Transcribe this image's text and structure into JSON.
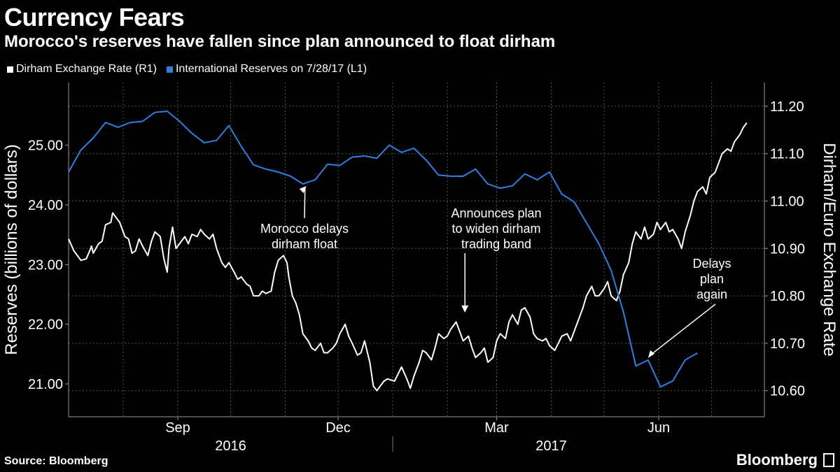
{
  "header": {
    "title": "Currency Fears",
    "subtitle": "Morocco's reserves have fallen since plan announced to float dirham"
  },
  "footer": {
    "source": "Source: Bloomberg",
    "brand": "Bloomberg"
  },
  "colors": {
    "background": "#000000",
    "reserves": "#2e7fe0",
    "exchange": "#ffffff",
    "grid": "#555555"
  },
  "chart_data": {
    "type": "line",
    "title": "Currency Fears",
    "subtitle": "Morocco's reserves have fallen since plan announced to float dirham",
    "grid": true,
    "legend_position": "top-left",
    "x_axis": {
      "range": [
        "2016-07-01",
        "2017-07-31"
      ],
      "tick_labels": [
        {
          "label": "Sep",
          "date": "2016-09-01"
        },
        {
          "label": "Dec",
          "date": "2016-12-01"
        },
        {
          "label": "Mar",
          "date": "2017-03-01"
        },
        {
          "label": "Jun",
          "date": "2017-06-01"
        }
      ],
      "year_labels": [
        {
          "label": "2016",
          "date": "2016-10-01"
        },
        {
          "label": "2017",
          "date": "2017-04-01"
        }
      ],
      "gridline_dates": [
        "2016-08-01",
        "2016-10-01",
        "2016-11-01",
        "2017-01-01",
        "2017-02-01",
        "2017-04-01",
        "2017-05-01",
        "2017-07-01"
      ]
    },
    "y_left": {
      "label": "Reserves (billions of dollars)",
      "ticks": [
        "21.00",
        "22.00",
        "23.00",
        "24.00",
        "25.00"
      ],
      "range": [
        20.45,
        26.05
      ]
    },
    "y_right": {
      "label": "Dirham/Euro Exchange Rate",
      "ticks": [
        "10.60",
        "10.70",
        "10.80",
        "10.90",
        "11.00",
        "11.10",
        "11.20"
      ],
      "range": [
        10.545,
        11.25
      ]
    },
    "series": [
      {
        "name": "Dirham Exchange Rate (R1)",
        "axis": "right",
        "values": [
          [
            "2016-07-01",
            10.92
          ],
          [
            "2016-07-04",
            10.895
          ],
          [
            "2016-07-06",
            10.885
          ],
          [
            "2016-07-08",
            10.875
          ],
          [
            "2016-07-11",
            10.878
          ],
          [
            "2016-07-13",
            10.895
          ],
          [
            "2016-07-14",
            10.905
          ],
          [
            "2016-07-15",
            10.89
          ],
          [
            "2016-07-18",
            10.91
          ],
          [
            "2016-07-20",
            10.915
          ],
          [
            "2016-07-22",
            10.95
          ],
          [
            "2016-07-25",
            10.955
          ],
          [
            "2016-07-26",
            10.975
          ],
          [
            "2016-07-28",
            10.965
          ],
          [
            "2016-07-30",
            10.955
          ],
          [
            "2016-08-02",
            10.925
          ],
          [
            "2016-08-04",
            10.92
          ],
          [
            "2016-08-06",
            10.89
          ],
          [
            "2016-08-08",
            10.895
          ],
          [
            "2016-08-10",
            10.92
          ],
          [
            "2016-08-12",
            10.905
          ],
          [
            "2016-08-15",
            10.885
          ],
          [
            "2016-08-17",
            10.915
          ],
          [
            "2016-08-19",
            10.935
          ],
          [
            "2016-08-22",
            10.925
          ],
          [
            "2016-08-24",
            10.88
          ],
          [
            "2016-08-26",
            10.85
          ],
          [
            "2016-08-27",
            10.9
          ],
          [
            "2016-08-29",
            10.945
          ],
          [
            "2016-08-31",
            10.9
          ],
          [
            "2016-09-02",
            10.91
          ],
          [
            "2016-09-05",
            10.925
          ],
          [
            "2016-09-07",
            10.91
          ],
          [
            "2016-09-09",
            10.93
          ],
          [
            "2016-09-12",
            10.925
          ],
          [
            "2016-09-14",
            10.94
          ],
          [
            "2016-09-16",
            10.93
          ],
          [
            "2016-09-19",
            10.92
          ],
          [
            "2016-09-21",
            10.93
          ],
          [
            "2016-09-23",
            10.9
          ],
          [
            "2016-09-26",
            10.87
          ],
          [
            "2016-09-28",
            10.86
          ],
          [
            "2016-09-30",
            10.87
          ],
          [
            "2016-10-03",
            10.85
          ],
          [
            "2016-10-05",
            10.835
          ],
          [
            "2016-10-07",
            10.84
          ],
          [
            "2016-10-10",
            10.825
          ],
          [
            "2016-10-12",
            10.82
          ],
          [
            "2016-10-14",
            10.8
          ],
          [
            "2016-10-17",
            10.8
          ],
          [
            "2016-10-19",
            10.81
          ],
          [
            "2016-10-21",
            10.805
          ],
          [
            "2016-10-24",
            10.81
          ],
          [
            "2016-10-26",
            10.85
          ],
          [
            "2016-10-28",
            10.875
          ],
          [
            "2016-10-31",
            10.885
          ],
          [
            "2016-11-02",
            10.87
          ],
          [
            "2016-11-03",
            10.84
          ],
          [
            "2016-11-05",
            10.8
          ],
          [
            "2016-11-07",
            10.785
          ],
          [
            "2016-11-09",
            10.76
          ],
          [
            "2016-11-11",
            10.72
          ],
          [
            "2016-11-14",
            10.705
          ],
          [
            "2016-11-16",
            10.69
          ],
          [
            "2016-11-18",
            10.685
          ],
          [
            "2016-11-21",
            10.7
          ],
          [
            "2016-11-23",
            10.68
          ],
          [
            "2016-11-25",
            10.68
          ],
          [
            "2016-11-28",
            10.69
          ],
          [
            "2016-11-30",
            10.7
          ],
          [
            "2016-12-02",
            10.72
          ],
          [
            "2016-12-05",
            10.74
          ],
          [
            "2016-12-07",
            10.715
          ],
          [
            "2016-12-09",
            10.7
          ],
          [
            "2016-12-12",
            10.675
          ],
          [
            "2016-12-14",
            10.68
          ],
          [
            "2016-12-16",
            10.705
          ],
          [
            "2016-12-19",
            10.66
          ],
          [
            "2016-12-21",
            10.61
          ],
          [
            "2016-12-23",
            10.6
          ],
          [
            "2016-12-27",
            10.62
          ],
          [
            "2016-12-29",
            10.625
          ],
          [
            "2017-01-02",
            10.62
          ],
          [
            "2017-01-04",
            10.635
          ],
          [
            "2017-01-06",
            10.65
          ],
          [
            "2017-01-09",
            10.625
          ],
          [
            "2017-01-11",
            10.605
          ],
          [
            "2017-01-13",
            10.63
          ],
          [
            "2017-01-16",
            10.66
          ],
          [
            "2017-01-18",
            10.685
          ],
          [
            "2017-01-20",
            10.68
          ],
          [
            "2017-01-23",
            10.665
          ],
          [
            "2017-01-25",
            10.69
          ],
          [
            "2017-01-27",
            10.72
          ],
          [
            "2017-01-30",
            10.71
          ],
          [
            "2017-02-01",
            10.715
          ],
          [
            "2017-02-03",
            10.73
          ],
          [
            "2017-02-06",
            10.745
          ],
          [
            "2017-02-08",
            10.725
          ],
          [
            "2017-02-10",
            10.705
          ],
          [
            "2017-02-13",
            10.715
          ],
          [
            "2017-02-15",
            10.69
          ],
          [
            "2017-02-17",
            10.67
          ],
          [
            "2017-02-20",
            10.68
          ],
          [
            "2017-02-22",
            10.69
          ],
          [
            "2017-02-24",
            10.66
          ],
          [
            "2017-02-27",
            10.67
          ],
          [
            "2017-03-01",
            10.705
          ],
          [
            "2017-03-03",
            10.72
          ],
          [
            "2017-03-06",
            10.71
          ],
          [
            "2017-03-08",
            10.745
          ],
          [
            "2017-03-10",
            10.76
          ],
          [
            "2017-03-13",
            10.74
          ],
          [
            "2017-03-15",
            10.77
          ],
          [
            "2017-03-17",
            10.775
          ],
          [
            "2017-03-20",
            10.755
          ],
          [
            "2017-03-22",
            10.72
          ],
          [
            "2017-03-24",
            10.71
          ],
          [
            "2017-03-27",
            10.705
          ],
          [
            "2017-03-29",
            10.71
          ],
          [
            "2017-03-31",
            10.695
          ],
          [
            "2017-04-03",
            10.685
          ],
          [
            "2017-04-05",
            10.7
          ],
          [
            "2017-04-07",
            10.715
          ],
          [
            "2017-04-10",
            10.72
          ],
          [
            "2017-04-12",
            10.705
          ],
          [
            "2017-04-14",
            10.725
          ],
          [
            "2017-04-17",
            10.755
          ],
          [
            "2017-04-19",
            10.775
          ],
          [
            "2017-04-21",
            10.8
          ],
          [
            "2017-04-24",
            10.82
          ],
          [
            "2017-04-26",
            10.8
          ],
          [
            "2017-04-28",
            10.8
          ],
          [
            "2017-05-01",
            10.815
          ],
          [
            "2017-05-03",
            10.83
          ],
          [
            "2017-05-05",
            10.8
          ],
          [
            "2017-05-08",
            10.79
          ],
          [
            "2017-05-10",
            10.81
          ],
          [
            "2017-05-12",
            10.845
          ],
          [
            "2017-05-15",
            10.87
          ],
          [
            "2017-05-17",
            10.91
          ],
          [
            "2017-05-19",
            10.935
          ],
          [
            "2017-05-22",
            10.92
          ],
          [
            "2017-05-24",
            10.945
          ],
          [
            "2017-05-26",
            10.92
          ],
          [
            "2017-05-29",
            10.93
          ],
          [
            "2017-05-31",
            10.955
          ],
          [
            "2017-06-02",
            10.94
          ],
          [
            "2017-06-05",
            10.955
          ],
          [
            "2017-06-07",
            10.935
          ],
          [
            "2017-06-09",
            10.94
          ],
          [
            "2017-06-12",
            10.92
          ],
          [
            "2017-06-14",
            10.9
          ],
          [
            "2017-06-16",
            10.935
          ],
          [
            "2017-06-19",
            10.97
          ],
          [
            "2017-06-21",
            11.0
          ],
          [
            "2017-06-23",
            11.02
          ],
          [
            "2017-06-26",
            11.03
          ],
          [
            "2017-06-28",
            11.015
          ],
          [
            "2017-06-30",
            11.05
          ],
          [
            "2017-07-03",
            11.06
          ],
          [
            "2017-07-05",
            11.08
          ],
          [
            "2017-07-07",
            11.1
          ],
          [
            "2017-07-10",
            11.11
          ],
          [
            "2017-07-12",
            11.105
          ],
          [
            "2017-07-14",
            11.125
          ],
          [
            "2017-07-17",
            11.14
          ],
          [
            "2017-07-19",
            11.155
          ],
          [
            "2017-07-21",
            11.165
          ]
        ]
      },
      {
        "name": "International Reserves on 7/28/17 (L1)",
        "axis": "left",
        "values": [
          [
            "2016-07-01",
            24.55
          ],
          [
            "2016-07-08",
            24.92
          ],
          [
            "2016-07-15",
            25.12
          ],
          [
            "2016-07-22",
            25.38
          ],
          [
            "2016-07-29",
            25.3
          ],
          [
            "2016-08-05",
            25.38
          ],
          [
            "2016-08-12",
            25.4
          ],
          [
            "2016-08-19",
            25.55
          ],
          [
            "2016-08-26",
            25.57
          ],
          [
            "2016-09-02",
            25.4
          ],
          [
            "2016-09-09",
            25.2
          ],
          [
            "2016-09-16",
            25.04
          ],
          [
            "2016-09-23",
            25.08
          ],
          [
            "2016-09-30",
            25.33
          ],
          [
            "2016-10-07",
            24.98
          ],
          [
            "2016-10-14",
            24.67
          ],
          [
            "2016-10-21",
            24.6
          ],
          [
            "2016-10-28",
            24.55
          ],
          [
            "2016-11-04",
            24.48
          ],
          [
            "2016-11-11",
            24.35
          ],
          [
            "2016-11-18",
            24.42
          ],
          [
            "2016-11-25",
            24.68
          ],
          [
            "2016-12-02",
            24.66
          ],
          [
            "2016-12-09",
            24.8
          ],
          [
            "2016-12-16",
            24.82
          ],
          [
            "2016-12-23",
            24.78
          ],
          [
            "2016-12-30",
            25.0
          ],
          [
            "2017-01-06",
            24.88
          ],
          [
            "2017-01-13",
            24.95
          ],
          [
            "2017-01-20",
            24.75
          ],
          [
            "2017-01-27",
            24.5
          ],
          [
            "2017-02-03",
            24.48
          ],
          [
            "2017-02-10",
            24.48
          ],
          [
            "2017-02-17",
            24.6
          ],
          [
            "2017-02-24",
            24.35
          ],
          [
            "2017-03-03",
            24.28
          ],
          [
            "2017-03-10",
            24.32
          ],
          [
            "2017-03-17",
            24.52
          ],
          [
            "2017-03-24",
            24.42
          ],
          [
            "2017-03-31",
            24.55
          ],
          [
            "2017-04-07",
            24.18
          ],
          [
            "2017-04-14",
            24.05
          ],
          [
            "2017-04-21",
            23.7
          ],
          [
            "2017-04-28",
            23.35
          ],
          [
            "2017-05-05",
            22.9
          ],
          [
            "2017-05-12",
            22.2
          ],
          [
            "2017-05-19",
            21.3
          ],
          [
            "2017-05-26",
            21.4
          ],
          [
            "2017-06-02",
            20.95
          ],
          [
            "2017-06-09",
            21.05
          ],
          [
            "2017-06-16",
            21.4
          ],
          [
            "2017-06-23",
            21.52
          ]
        ]
      }
    ],
    "annotations": [
      {
        "text": [
          "Morocco delays",
          "dirham float"
        ],
        "date": "2016-11-13",
        "axis": "left",
        "value": 24.35
      },
      {
        "text": [
          "Announces plan",
          "to widen dirham",
          "trading band"
        ],
        "date": "2017-02-11",
        "axis": "right",
        "value": 10.765
      },
      {
        "text": [
          "Delays",
          "plan",
          "again"
        ],
        "date": "2017-05-26",
        "axis": "left",
        "value": 21.4
      }
    ]
  }
}
